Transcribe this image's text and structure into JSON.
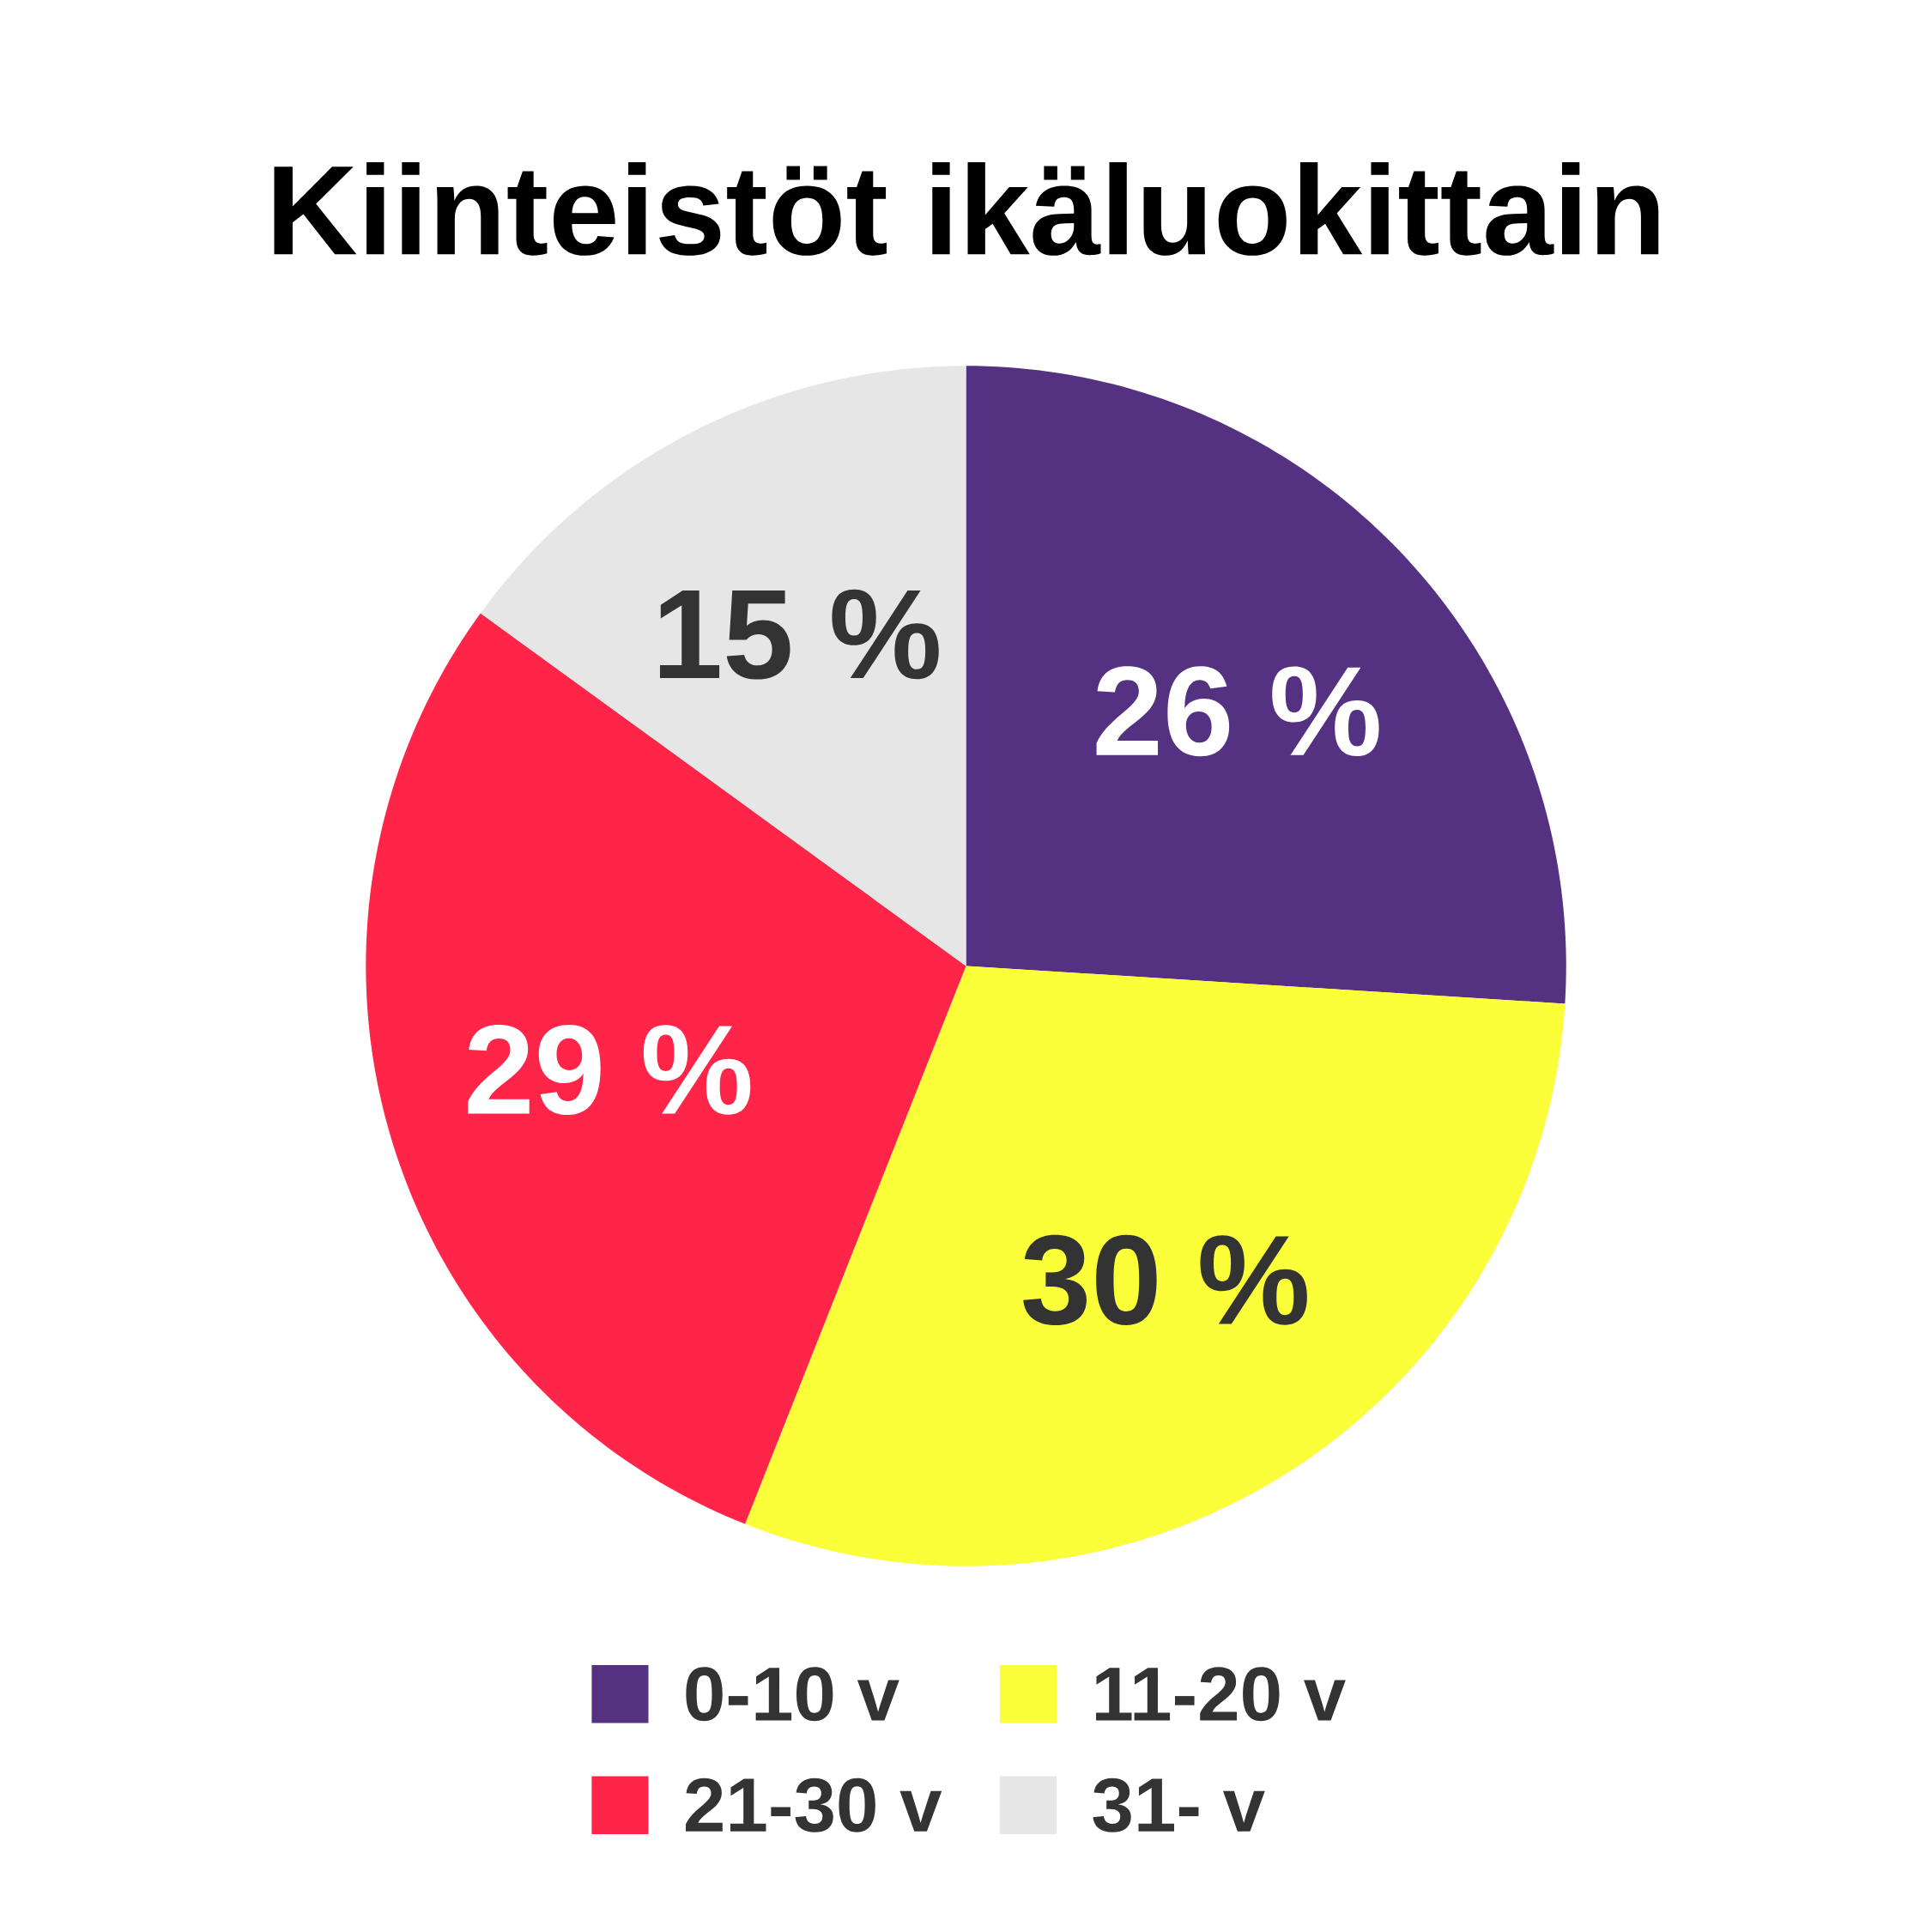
{
  "chart_data": {
    "type": "pie",
    "title": "Kiinteistöt ikäluokittain",
    "categories": [
      "0-10 v",
      "11-20 v",
      "21-30 v",
      "31- v"
    ],
    "values": [
      26,
      30,
      29,
      15
    ],
    "colors": [
      "#553281",
      "#fbff3a",
      "#ff2549",
      "#e6e6e6"
    ],
    "value_labels": [
      "26 %",
      "30 %",
      "29 %",
      "15 %"
    ],
    "legend": "bottom"
  }
}
